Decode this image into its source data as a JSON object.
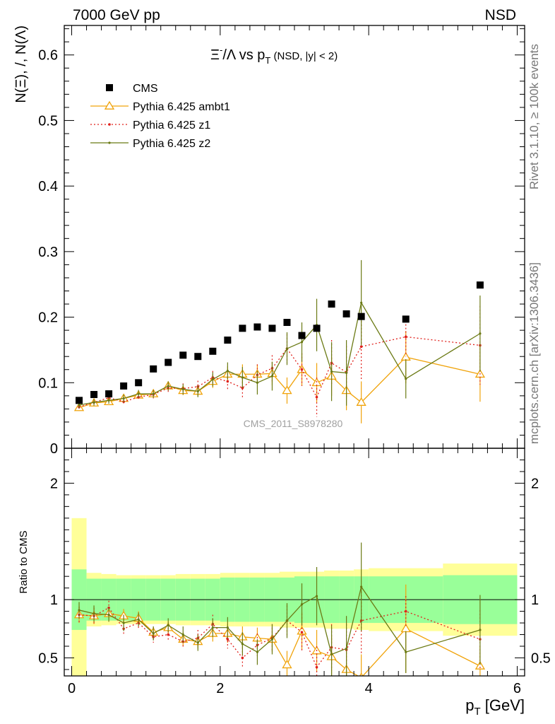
{
  "header": {
    "left": "7000 GeV pp",
    "right": "NSD"
  },
  "side_text": {
    "rivet": "Rivet 3.1.10, ≥ 100k events",
    "mcplots": "mcplots.cern.ch [arXiv:1306.3436]"
  },
  "watermark": "CMS_2011_S8978280",
  "colors": {
    "cms": "#000000",
    "ambt1": "#f0a30a",
    "z1": "#e0201b",
    "z2": "#6b7a14",
    "band_inner": "#99ff99",
    "band_outer": "#ffff99"
  },
  "chart_data": [
    {
      "type": "scatter",
      "title_parts": {
        "main": "Ξ",
        "sup": "-",
        "slash": "/Λ  vs p",
        "sub": "T",
        "note": " (NSD, |y| < 2)"
      },
      "ylabel": "N(Ξ), /, N(Λ)",
      "xlim": [
        -0.1,
        6.1
      ],
      "ylim": [
        0,
        0.645
      ],
      "yticks": [
        0,
        0.1,
        0.2,
        0.3,
        0.4,
        0.5,
        0.6
      ],
      "ytick_labels": [
        "0",
        "0.1",
        "0.2",
        "0.3",
        "0.4",
        "0.5",
        "0.6"
      ],
      "legend": [
        "CMS",
        "Pythia 6.425 ambt1",
        "Pythia 6.425 z1",
        "Pythia 6.425 z2"
      ],
      "series": [
        {
          "name": "CMS",
          "x": [
            0.1,
            0.3,
            0.5,
            0.7,
            0.9,
            1.1,
            1.3,
            1.5,
            1.7,
            1.9,
            2.1,
            2.3,
            2.5,
            2.7,
            2.9,
            3.1,
            3.3,
            3.5,
            3.7,
            3.9,
            4.5,
            5.5
          ],
          "y": [
            0.073,
            0.082,
            0.083,
            0.095,
            0.1,
            0.121,
            0.131,
            0.142,
            0.14,
            0.148,
            0.165,
            0.183,
            0.185,
            0.183,
            0.192,
            0.172,
            0.183,
            0.22,
            0.205,
            0.201,
            0.197,
            0.249
          ]
        },
        {
          "name": "Pythia 6.425 ambt1",
          "x": [
            0.1,
            0.3,
            0.5,
            0.7,
            0.9,
            1.1,
            1.3,
            1.5,
            1.7,
            1.9,
            2.1,
            2.3,
            2.5,
            2.7,
            2.9,
            3.1,
            3.3,
            3.5,
            3.7,
            3.9,
            4.5,
            5.5
          ],
          "y": [
            0.062,
            0.069,
            0.071,
            0.076,
            0.081,
            0.083,
            0.095,
            0.088,
            0.087,
            0.102,
            0.113,
            0.113,
            0.113,
            0.114,
            0.088,
            0.12,
            0.1,
            0.11,
            0.088,
            0.07,
            0.139,
            0.113
          ],
          "err": [
            0.005,
            0.005,
            0.005,
            0.005,
            0.005,
            0.005,
            0.006,
            0.007,
            0.008,
            0.01,
            0.012,
            0.015,
            0.015,
            0.018,
            0.02,
            0.025,
            0.03,
            0.03,
            0.03,
            0.032,
            0.04,
            0.042
          ]
        },
        {
          "name": "Pythia 6.425 z1",
          "x": [
            0.1,
            0.3,
            0.5,
            0.7,
            0.9,
            1.1,
            1.3,
            1.5,
            1.7,
            1.9,
            2.1,
            2.3,
            2.5,
            2.7,
            2.9,
            3.1,
            3.3,
            3.5,
            3.7,
            3.9,
            4.5,
            5.5
          ],
          "y": [
            0.063,
            0.07,
            0.077,
            0.071,
            0.078,
            0.082,
            0.092,
            0.091,
            0.094,
            0.108,
            0.102,
            0.092,
            0.112,
            0.122,
            0.152,
            0.12,
            0.078,
            0.13,
            0.116,
            0.155,
            0.17,
            0.157
          ],
          "err": [
            0.005,
            0.005,
            0.005,
            0.005,
            0.005,
            0.006,
            0.007,
            0.008,
            0.009,
            0.01,
            0.012,
            0.015,
            0.016,
            0.02,
            0.022,
            0.025,
            0.03,
            0.035,
            0.04,
            0.05,
            0.03,
            0.06
          ]
        },
        {
          "name": "Pythia 6.425 z2",
          "x": [
            0.1,
            0.3,
            0.5,
            0.7,
            0.9,
            1.1,
            1.3,
            1.5,
            1.7,
            1.9,
            2.1,
            2.3,
            2.5,
            2.7,
            2.9,
            3.1,
            3.3,
            3.5,
            3.7,
            3.9,
            4.5,
            5.5
          ],
          "y": [
            0.066,
            0.07,
            0.073,
            0.076,
            0.083,
            0.083,
            0.095,
            0.09,
            0.087,
            0.105,
            0.118,
            0.108,
            0.1,
            0.11,
            0.152,
            0.162,
            0.188,
            0.117,
            0.115,
            0.222,
            0.106,
            0.175
          ],
          "err": [
            0.005,
            0.005,
            0.005,
            0.006,
            0.006,
            0.006,
            0.007,
            0.008,
            0.009,
            0.011,
            0.013,
            0.016,
            0.018,
            0.022,
            0.025,
            0.03,
            0.04,
            0.045,
            0.05,
            0.065,
            0.03,
            0.058
          ]
        }
      ]
    },
    {
      "type": "line",
      "ylabel": "Ratio to CMS",
      "xlabel": "p_T [GeV]",
      "xlabel_parts": {
        "main": "p",
        "sub": "T",
        "rest": " [GeV]"
      },
      "xlim": [
        -0.1,
        6.1
      ],
      "ylim": [
        0.345,
        2.3
      ],
      "yticks": [
        0.5,
        1,
        2
      ],
      "ytick_labels": [
        "0.5",
        "1",
        "2"
      ],
      "xticks": [
        0,
        2,
        4,
        6
      ],
      "xtick_labels": [
        "0",
        "2",
        "4",
        "6"
      ],
      "bands": {
        "edges": [
          0.0,
          0.2,
          0.4,
          0.6,
          0.8,
          1.0,
          1.2,
          1.4,
          1.6,
          1.8,
          2.0,
          2.2,
          2.4,
          2.6,
          2.8,
          3.0,
          3.2,
          3.4,
          3.6,
          3.8,
          4.0,
          5.0,
          6.0
        ],
        "inner": [
          0.26,
          0.18,
          0.18,
          0.18,
          0.18,
          0.18,
          0.18,
          0.18,
          0.18,
          0.18,
          0.19,
          0.19,
          0.19,
          0.19,
          0.19,
          0.2,
          0.2,
          0.2,
          0.2,
          0.2,
          0.2,
          0.21
        ],
        "outer": [
          0.7,
          0.23,
          0.22,
          0.21,
          0.21,
          0.21,
          0.21,
          0.22,
          0.22,
          0.22,
          0.23,
          0.23,
          0.23,
          0.23,
          0.24,
          0.24,
          0.24,
          0.25,
          0.25,
          0.26,
          0.27,
          0.31
        ]
      },
      "series": [
        {
          "name": "Pythia 6.425 ambt1",
          "x": [
            0.1,
            0.3,
            0.5,
            0.7,
            0.9,
            1.1,
            1.3,
            1.5,
            1.7,
            1.9,
            2.1,
            2.3,
            2.5,
            2.7,
            2.9,
            3.1,
            3.3,
            3.5,
            3.7,
            3.9,
            4.5,
            5.5
          ],
          "y": [
            0.87,
            0.86,
            0.88,
            0.86,
            0.84,
            0.72,
            0.76,
            0.66,
            0.64,
            0.71,
            0.71,
            0.68,
            0.67,
            0.66,
            0.44,
            0.73,
            0.56,
            0.51,
            0.4,
            0.33,
            0.75,
            0.43
          ],
          "err": [
            0.07,
            0.07,
            0.06,
            0.06,
            0.06,
            0.05,
            0.05,
            0.06,
            0.06,
            0.07,
            0.08,
            0.09,
            0.09,
            0.11,
            0.12,
            0.16,
            0.18,
            0.18,
            0.18,
            0.2,
            0.38,
            0.17
          ]
        },
        {
          "name": "Pythia 6.425 z1",
          "x": [
            0.1,
            0.3,
            0.5,
            0.7,
            0.9,
            1.1,
            1.3,
            1.5,
            1.7,
            1.9,
            2.1,
            2.3,
            2.5,
            2.7,
            2.9,
            3.1,
            3.3,
            3.5,
            3.7,
            3.9,
            4.5,
            5.5
          ],
          "y": [
            0.87,
            0.86,
            0.93,
            0.75,
            0.8,
            0.68,
            0.7,
            0.64,
            0.67,
            0.79,
            0.66,
            0.5,
            0.61,
            0.67,
            0.82,
            0.72,
            0.42,
            0.59,
            0.57,
            0.82,
            0.9,
            0.66
          ],
          "err": [
            0.07,
            0.07,
            0.06,
            0.06,
            0.06,
            0.05,
            0.06,
            0.06,
            0.07,
            0.08,
            0.08,
            0.09,
            0.1,
            0.12,
            0.13,
            0.16,
            0.18,
            0.2,
            0.22,
            0.28,
            0.13,
            0.25
          ]
        },
        {
          "name": "Pythia 6.425 z2",
          "x": [
            0.1,
            0.3,
            0.5,
            0.7,
            0.9,
            1.1,
            1.3,
            1.5,
            1.7,
            1.9,
            2.1,
            2.3,
            2.5,
            2.7,
            2.9,
            3.1,
            3.3,
            3.5,
            3.7,
            3.9,
            4.5,
            5.5
          ],
          "y": [
            0.91,
            0.88,
            0.87,
            0.8,
            0.83,
            0.71,
            0.78,
            0.7,
            0.63,
            0.76,
            0.76,
            0.62,
            0.55,
            0.66,
            0.82,
            0.96,
            1.03,
            0.53,
            0.58,
            1.11,
            0.55,
            0.74
          ],
          "err": [
            0.07,
            0.07,
            0.06,
            0.07,
            0.06,
            0.06,
            0.06,
            0.07,
            0.07,
            0.08,
            0.09,
            0.1,
            0.11,
            0.13,
            0.15,
            0.18,
            0.25,
            0.25,
            0.28,
            0.38,
            0.18,
            0.3
          ]
        }
      ]
    }
  ]
}
